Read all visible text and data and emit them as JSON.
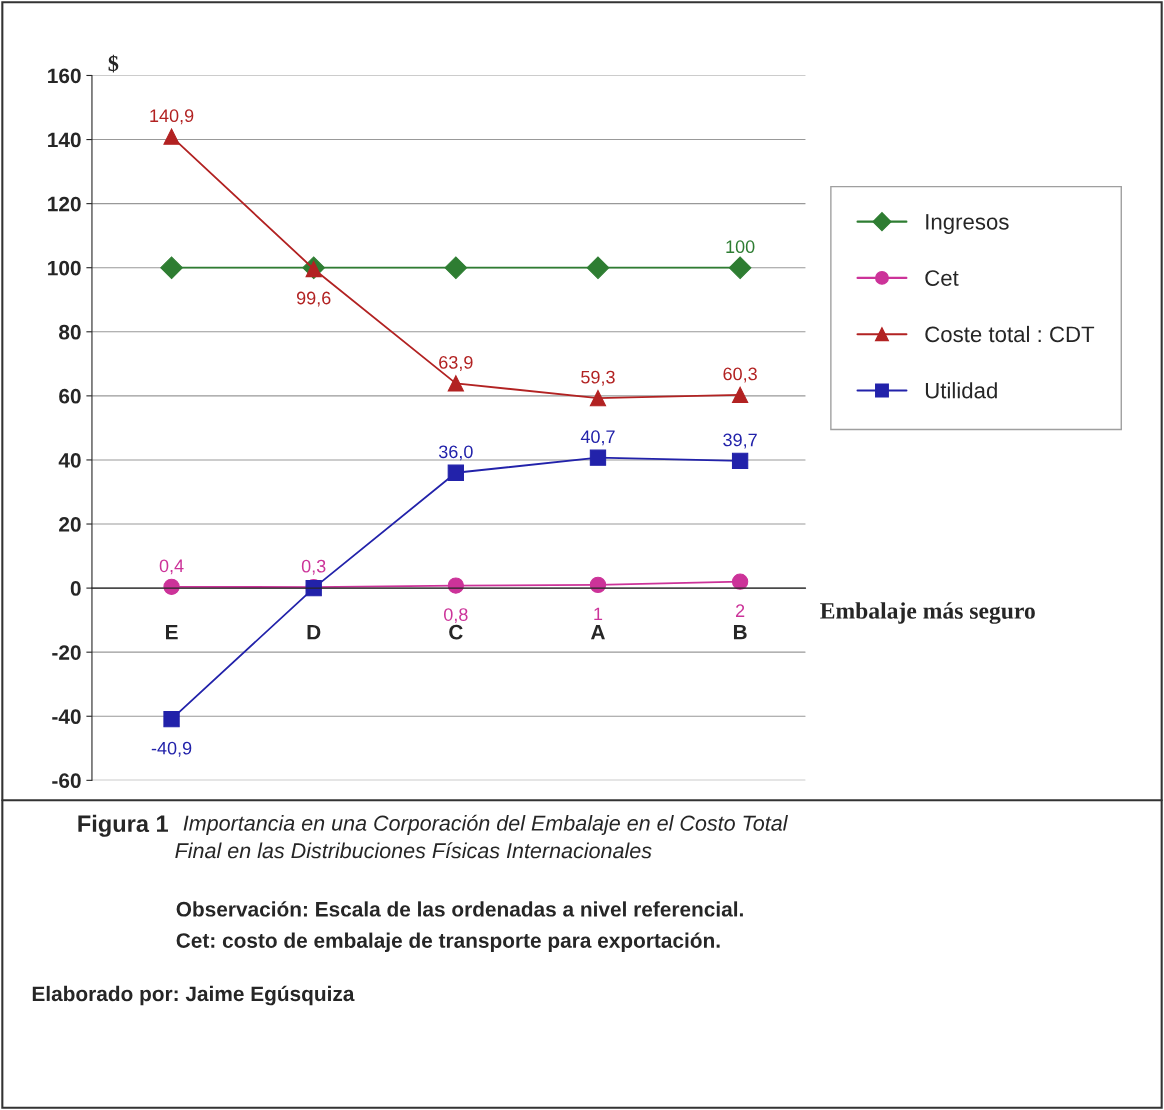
{
  "chart_data": {
    "type": "line",
    "ylabel": "$",
    "xlabel": "Embalaje más seguro",
    "categories": [
      "E",
      "D",
      "C",
      "A",
      "B"
    ],
    "ylim": [
      -60,
      160
    ],
    "yticks": [
      -60,
      -40,
      -20,
      0,
      20,
      40,
      60,
      80,
      100,
      120,
      140,
      160
    ],
    "grid": "y",
    "legend": "right",
    "series": [
      {
        "name": "Ingresos",
        "color": "#2e7d32",
        "marker": "diamond",
        "values": [
          100,
          100,
          100,
          100,
          100
        ],
        "value_labels": [
          null,
          null,
          null,
          null,
          "100"
        ]
      },
      {
        "name": "Cet",
        "color": "#cc3399",
        "marker": "circle",
        "values": [
          0.4,
          0.3,
          0.8,
          1,
          2
        ],
        "value_labels": [
          "0,4",
          "0,3",
          "0,8",
          "1",
          "2"
        ]
      },
      {
        "name": "Coste total : CDT",
        "color": "#b22222",
        "marker": "triangle",
        "values": [
          140.9,
          99.6,
          63.9,
          59.3,
          60.3
        ],
        "value_labels": [
          "140,9",
          "99,6",
          "63,9",
          "59,3",
          "60,3"
        ]
      },
      {
        "name": "Utilidad",
        "color": "#2222aa",
        "marker": "square",
        "values": [
          -40.9,
          0,
          36.0,
          40.7,
          39.7
        ],
        "value_labels": [
          "-40,9",
          null,
          "36,0",
          "40,7",
          "39,7"
        ]
      }
    ],
    "annotations": [
      "Figura 1",
      "Importancia en una Corporación del Embalaje en el Costo Total",
      "Final en las Distribuciones Físicas Internacionales",
      "Observación: Escala de las ordenadas a nivel referencial.",
      "Cet: costo de embalaje de transporte para exportación.",
      "Elaborado por: Jaime Egúsquiza"
    ]
  }
}
